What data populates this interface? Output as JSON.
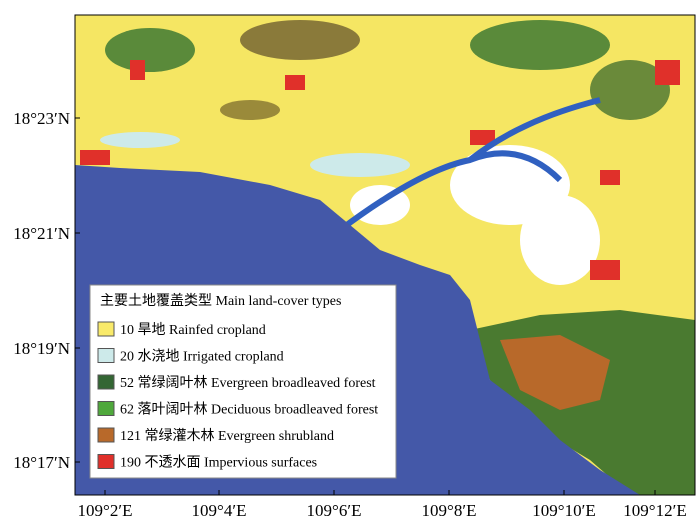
{
  "map": {
    "y_labels": [
      "18°23′N",
      "18°21′N",
      "18°19′N",
      "18°17′N"
    ],
    "x_labels": [
      "109°2′E",
      "109°4′E",
      "109°6′E",
      "109°8′E",
      "109°10′E",
      "109°12′E"
    ],
    "legend": {
      "title": "主要土地覆盖类型  Main land-cover types",
      "items": [
        {
          "label": "10 旱地 Rainfed cropland",
          "color": "#f9ea6a"
        },
        {
          "label": "20 水浇地 Irrigated cropland",
          "color": "#cdeaea"
        },
        {
          "label": "52 常绿阔叶林 Evergreen broadleaved forest",
          "color": "#336633"
        },
        {
          "label": "62 落叶阔叶林 Deciduous broadleaved forest",
          "color": "#4fa83c"
        },
        {
          "label": "121 常绿灌木林 Evergreen shrubland",
          "color": "#b8692a"
        },
        {
          "label": "190 不透水面 Impervious surfaces",
          "color": "#e0302a"
        }
      ]
    }
  }
}
